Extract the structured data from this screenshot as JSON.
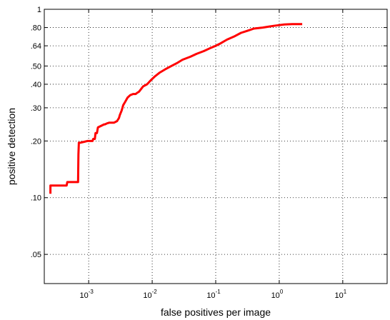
{
  "chart_data": {
    "type": "line",
    "xlabel": "false positives per image",
    "ylabel": "positive detection",
    "x_scale": "log",
    "y_scale": "log",
    "xlim": [
      0.0002,
      50
    ],
    "ylim": [
      0.035,
      1
    ],
    "grid": true,
    "x_ticks": [
      {
        "value": 0.001,
        "base": "10",
        "exp": "-3"
      },
      {
        "value": 0.01,
        "base": "10",
        "exp": "-2"
      },
      {
        "value": 0.1,
        "base": "10",
        "exp": "-1"
      },
      {
        "value": 1,
        "base": "10",
        "exp": "0"
      },
      {
        "value": 10,
        "base": "10",
        "exp": "1"
      }
    ],
    "y_ticks": [
      {
        "value": 0.05,
        "label": ".05"
      },
      {
        "value": 0.1,
        "label": ".10"
      },
      {
        "value": 0.2,
        "label": ".20"
      },
      {
        "value": 0.3,
        "label": ".30"
      },
      {
        "value": 0.4,
        "label": ".40"
      },
      {
        "value": 0.5,
        "label": ".50"
      },
      {
        "value": 0.64,
        "label": ".64"
      },
      {
        "value": 0.8,
        "label": ".80"
      },
      {
        "value": 1.0,
        "label": "1"
      }
    ],
    "series": [
      {
        "color": "#ff0000",
        "x": [
          0.00025,
          0.00025,
          0.00026,
          0.00045,
          0.00046,
          0.00068,
          0.00069,
          0.0007,
          0.00075,
          0.00085,
          0.00095,
          0.00115,
          0.00118,
          0.00125,
          0.00128,
          0.00135,
          0.0014,
          0.00175,
          0.0018,
          0.00195,
          0.0021,
          0.0025,
          0.0028,
          0.003,
          0.0031,
          0.0033,
          0.0035,
          0.0037,
          0.0039,
          0.0041,
          0.0045,
          0.005,
          0.0055,
          0.0058,
          0.0062,
          0.0066,
          0.0072,
          0.0083,
          0.0095,
          0.011,
          0.013,
          0.016,
          0.02,
          0.025,
          0.03,
          0.04,
          0.05,
          0.065,
          0.08,
          0.1,
          0.12,
          0.15,
          0.2,
          0.25,
          0.32,
          0.4,
          0.55,
          0.7,
          0.9,
          1.2,
          1.6,
          2.3
        ],
        "y": [
          0.105,
          0.116,
          0.116,
          0.116,
          0.121,
          0.121,
          0.17,
          0.196,
          0.196,
          0.198,
          0.2,
          0.2,
          0.205,
          0.205,
          0.22,
          0.22,
          0.236,
          0.245,
          0.245,
          0.248,
          0.25,
          0.25,
          0.255,
          0.265,
          0.275,
          0.29,
          0.31,
          0.32,
          0.33,
          0.34,
          0.35,
          0.355,
          0.355,
          0.36,
          0.365,
          0.375,
          0.39,
          0.4,
          0.42,
          0.44,
          0.46,
          0.48,
          0.5,
          0.52,
          0.54,
          0.56,
          0.58,
          0.6,
          0.62,
          0.64,
          0.66,
          0.69,
          0.72,
          0.75,
          0.77,
          0.79,
          0.8,
          0.81,
          0.82,
          0.83,
          0.835,
          0.835
        ]
      }
    ]
  }
}
